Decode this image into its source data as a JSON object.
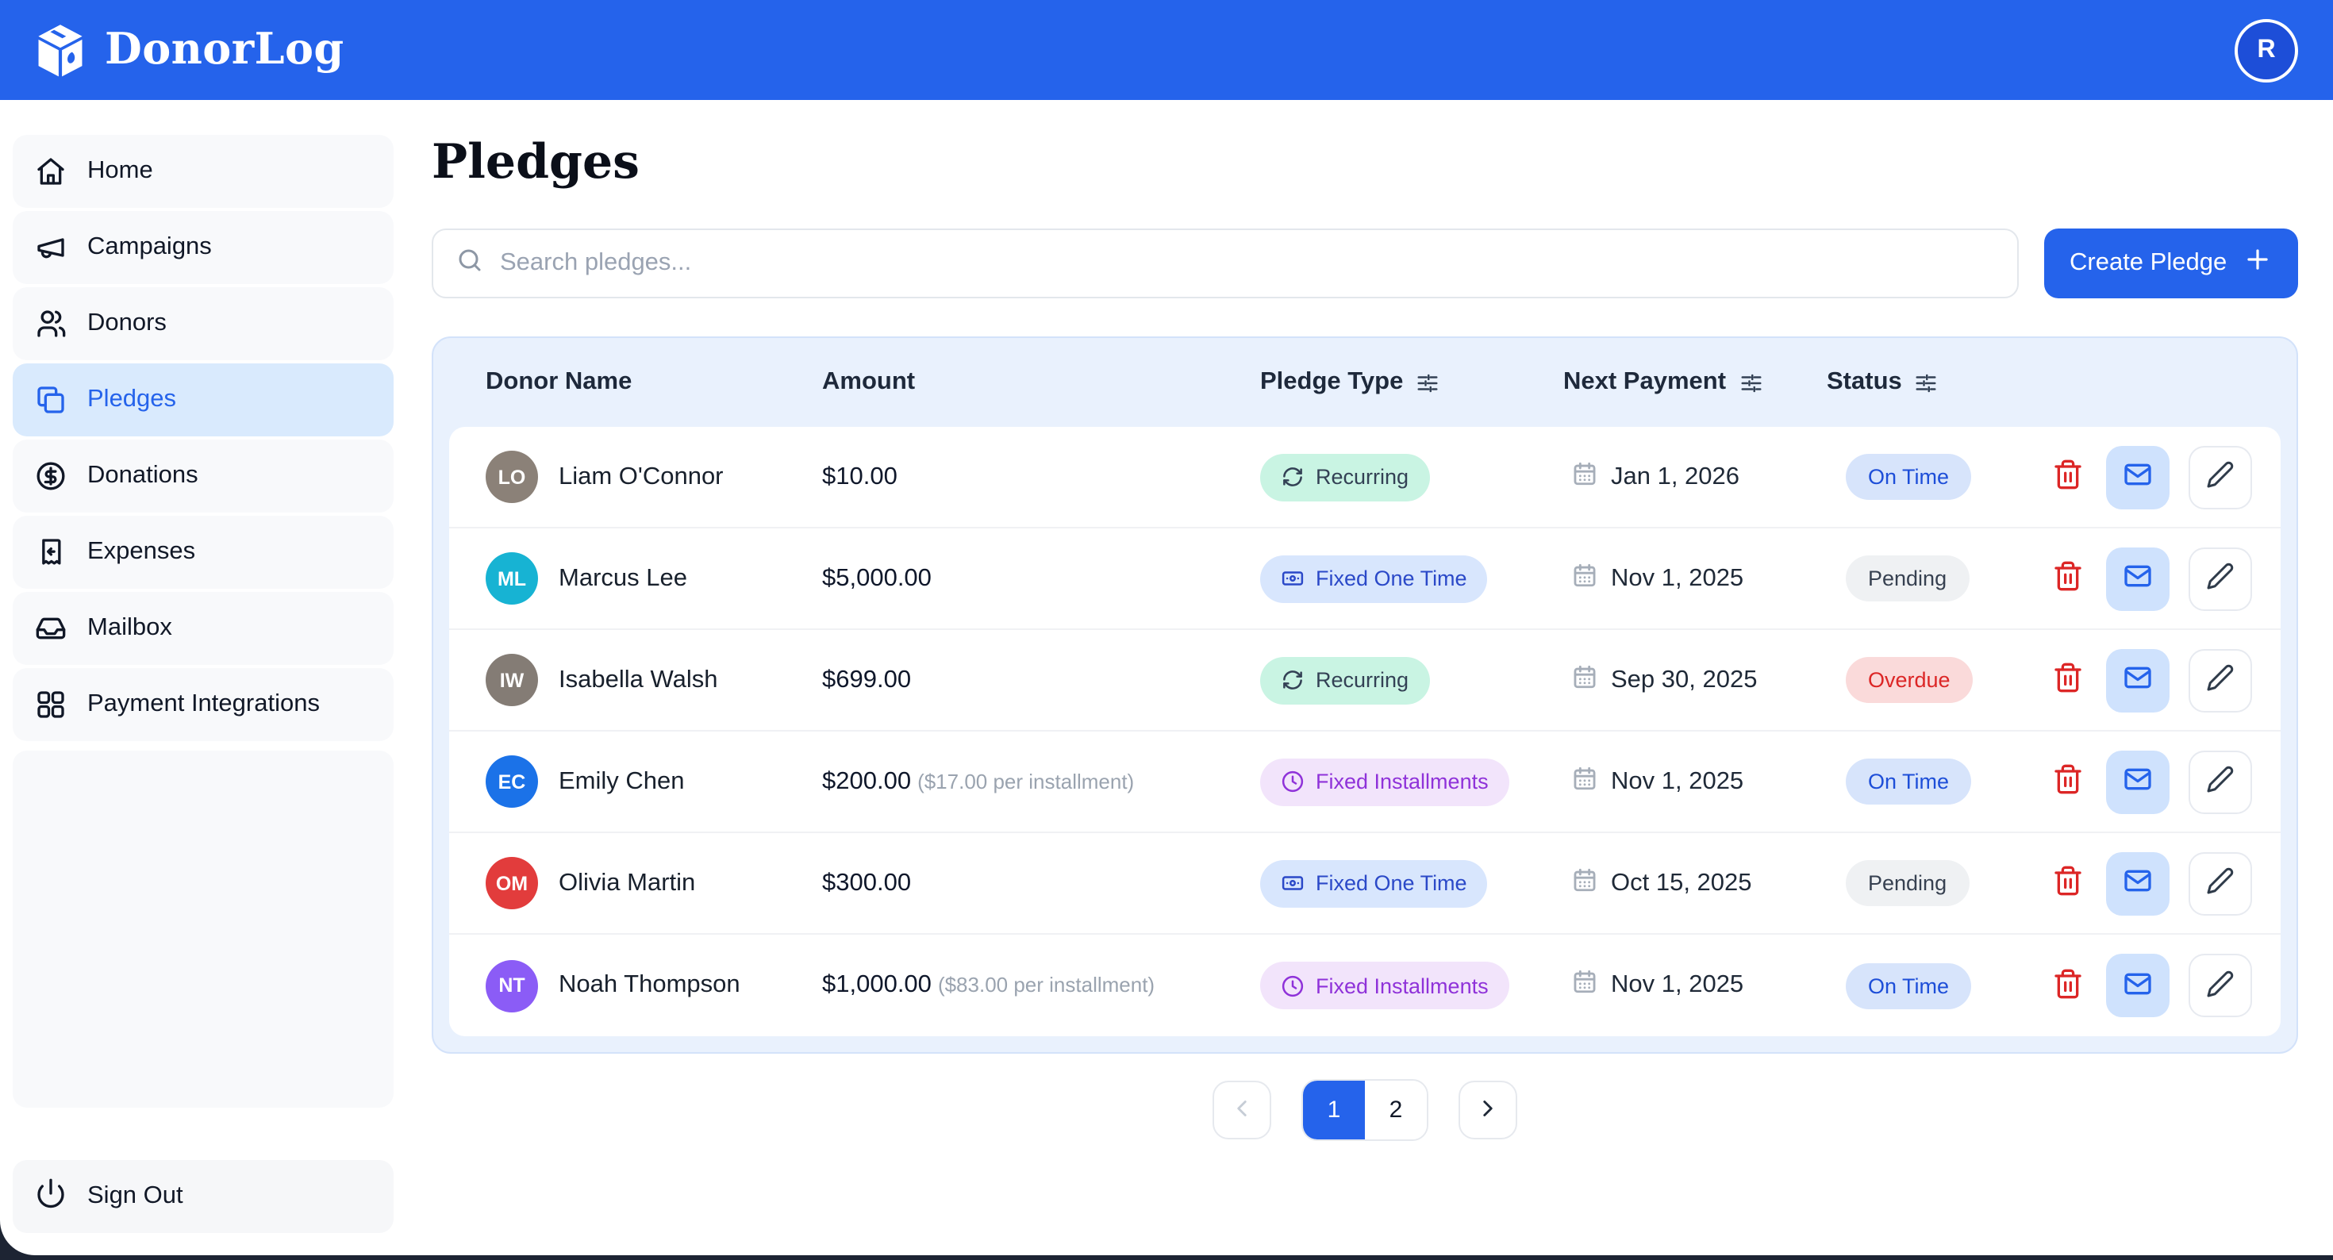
{
  "app": {
    "name": "DonorLog",
    "avatar_initial": "R"
  },
  "sidebar": {
    "items": [
      {
        "label": "Home",
        "icon": "home",
        "active": false
      },
      {
        "label": "Campaigns",
        "icon": "megaphone",
        "active": false
      },
      {
        "label": "Donors",
        "icon": "users",
        "active": false
      },
      {
        "label": "Pledges",
        "icon": "pages",
        "active": true
      },
      {
        "label": "Donations",
        "icon": "dollar-circle",
        "active": false
      },
      {
        "label": "Expenses",
        "icon": "receipt",
        "active": false
      },
      {
        "label": "Mailbox",
        "icon": "inbox",
        "active": false
      },
      {
        "label": "Payment Integrations",
        "icon": "grid",
        "active": false
      }
    ],
    "sign_out_label": "Sign Out"
  },
  "page": {
    "title": "Pledges",
    "search_placeholder": "Search pledges...",
    "create_button_label": "Create Pledge"
  },
  "table": {
    "columns": [
      {
        "label": "Donor Name",
        "filter": false
      },
      {
        "label": "Amount",
        "filter": false
      },
      {
        "label": "Pledge Type",
        "filter": true
      },
      {
        "label": "Next Payment",
        "filter": true
      },
      {
        "label": "Status",
        "filter": true
      }
    ],
    "rows": [
      {
        "initials": "LO",
        "avatar_color": "#8b8178",
        "name": "Liam O'Connor",
        "amount": "$10.00",
        "amount_note": "",
        "type_label": "Recurring",
        "type_key": "recurring",
        "next_payment": "Jan 1, 2026",
        "status_label": "On Time",
        "status_key": "on_time"
      },
      {
        "initials": "ML",
        "avatar_color": "#17b3d3",
        "name": "Marcus Lee",
        "amount": "$5,000.00",
        "amount_note": "",
        "type_label": "Fixed One Time",
        "type_key": "fixed_one_time",
        "next_payment": "Nov 1, 2025",
        "status_label": "Pending",
        "status_key": "pending"
      },
      {
        "initials": "IW",
        "avatar_color": "#847c75",
        "name": "Isabella Walsh",
        "amount": "$699.00",
        "amount_note": "",
        "type_label": "Recurring",
        "type_key": "recurring",
        "next_payment": "Sep 30, 2025",
        "status_label": "Overdue",
        "status_key": "overdue"
      },
      {
        "initials": "EC",
        "avatar_color": "#1b72e8",
        "name": "Emily Chen",
        "amount": "$200.00",
        "amount_note": "($17.00 per installment)",
        "type_label": "Fixed Installments",
        "type_key": "fixed_installments",
        "next_payment": "Nov 1, 2025",
        "status_label": "On Time",
        "status_key": "on_time"
      },
      {
        "initials": "OM",
        "avatar_color": "#e23c3c",
        "name": "Olivia Martin",
        "amount": "$300.00",
        "amount_note": "",
        "type_label": "Fixed One Time",
        "type_key": "fixed_one_time",
        "next_payment": "Oct 15, 2025",
        "status_label": "Pending",
        "status_key": "pending"
      },
      {
        "initials": "NT",
        "avatar_color": "#8b5cf6",
        "name": "Noah Thompson",
        "amount": "$1,000.00",
        "amount_note": "($83.00 per installment)",
        "type_label": "Fixed Installments",
        "type_key": "fixed_installments",
        "next_payment": "Nov 1, 2025",
        "status_label": "On Time",
        "status_key": "on_time"
      }
    ]
  },
  "styles": {
    "accent": "#2563eb",
    "pledge_type": {
      "recurring": {
        "bg": "#c9f4e3",
        "fg": "#334155"
      },
      "fixed_one_time": {
        "bg": "#d8e6fd",
        "fg": "#2b49c8"
      },
      "fixed_installments": {
        "bg": "#f2e4fb",
        "fg": "#8f32d9"
      }
    },
    "status": {
      "on_time": {
        "bg": "#d7e4fb",
        "fg": "#1d4ed8"
      },
      "pending": {
        "bg": "#eff1f3",
        "fg": "#374151"
      },
      "overdue": {
        "bg": "#fadada",
        "fg": "#dc2626"
      }
    }
  },
  "pagination": {
    "prev_disabled": true,
    "pages": [
      {
        "label": "1",
        "active": true
      },
      {
        "label": "2",
        "active": false
      }
    ]
  }
}
